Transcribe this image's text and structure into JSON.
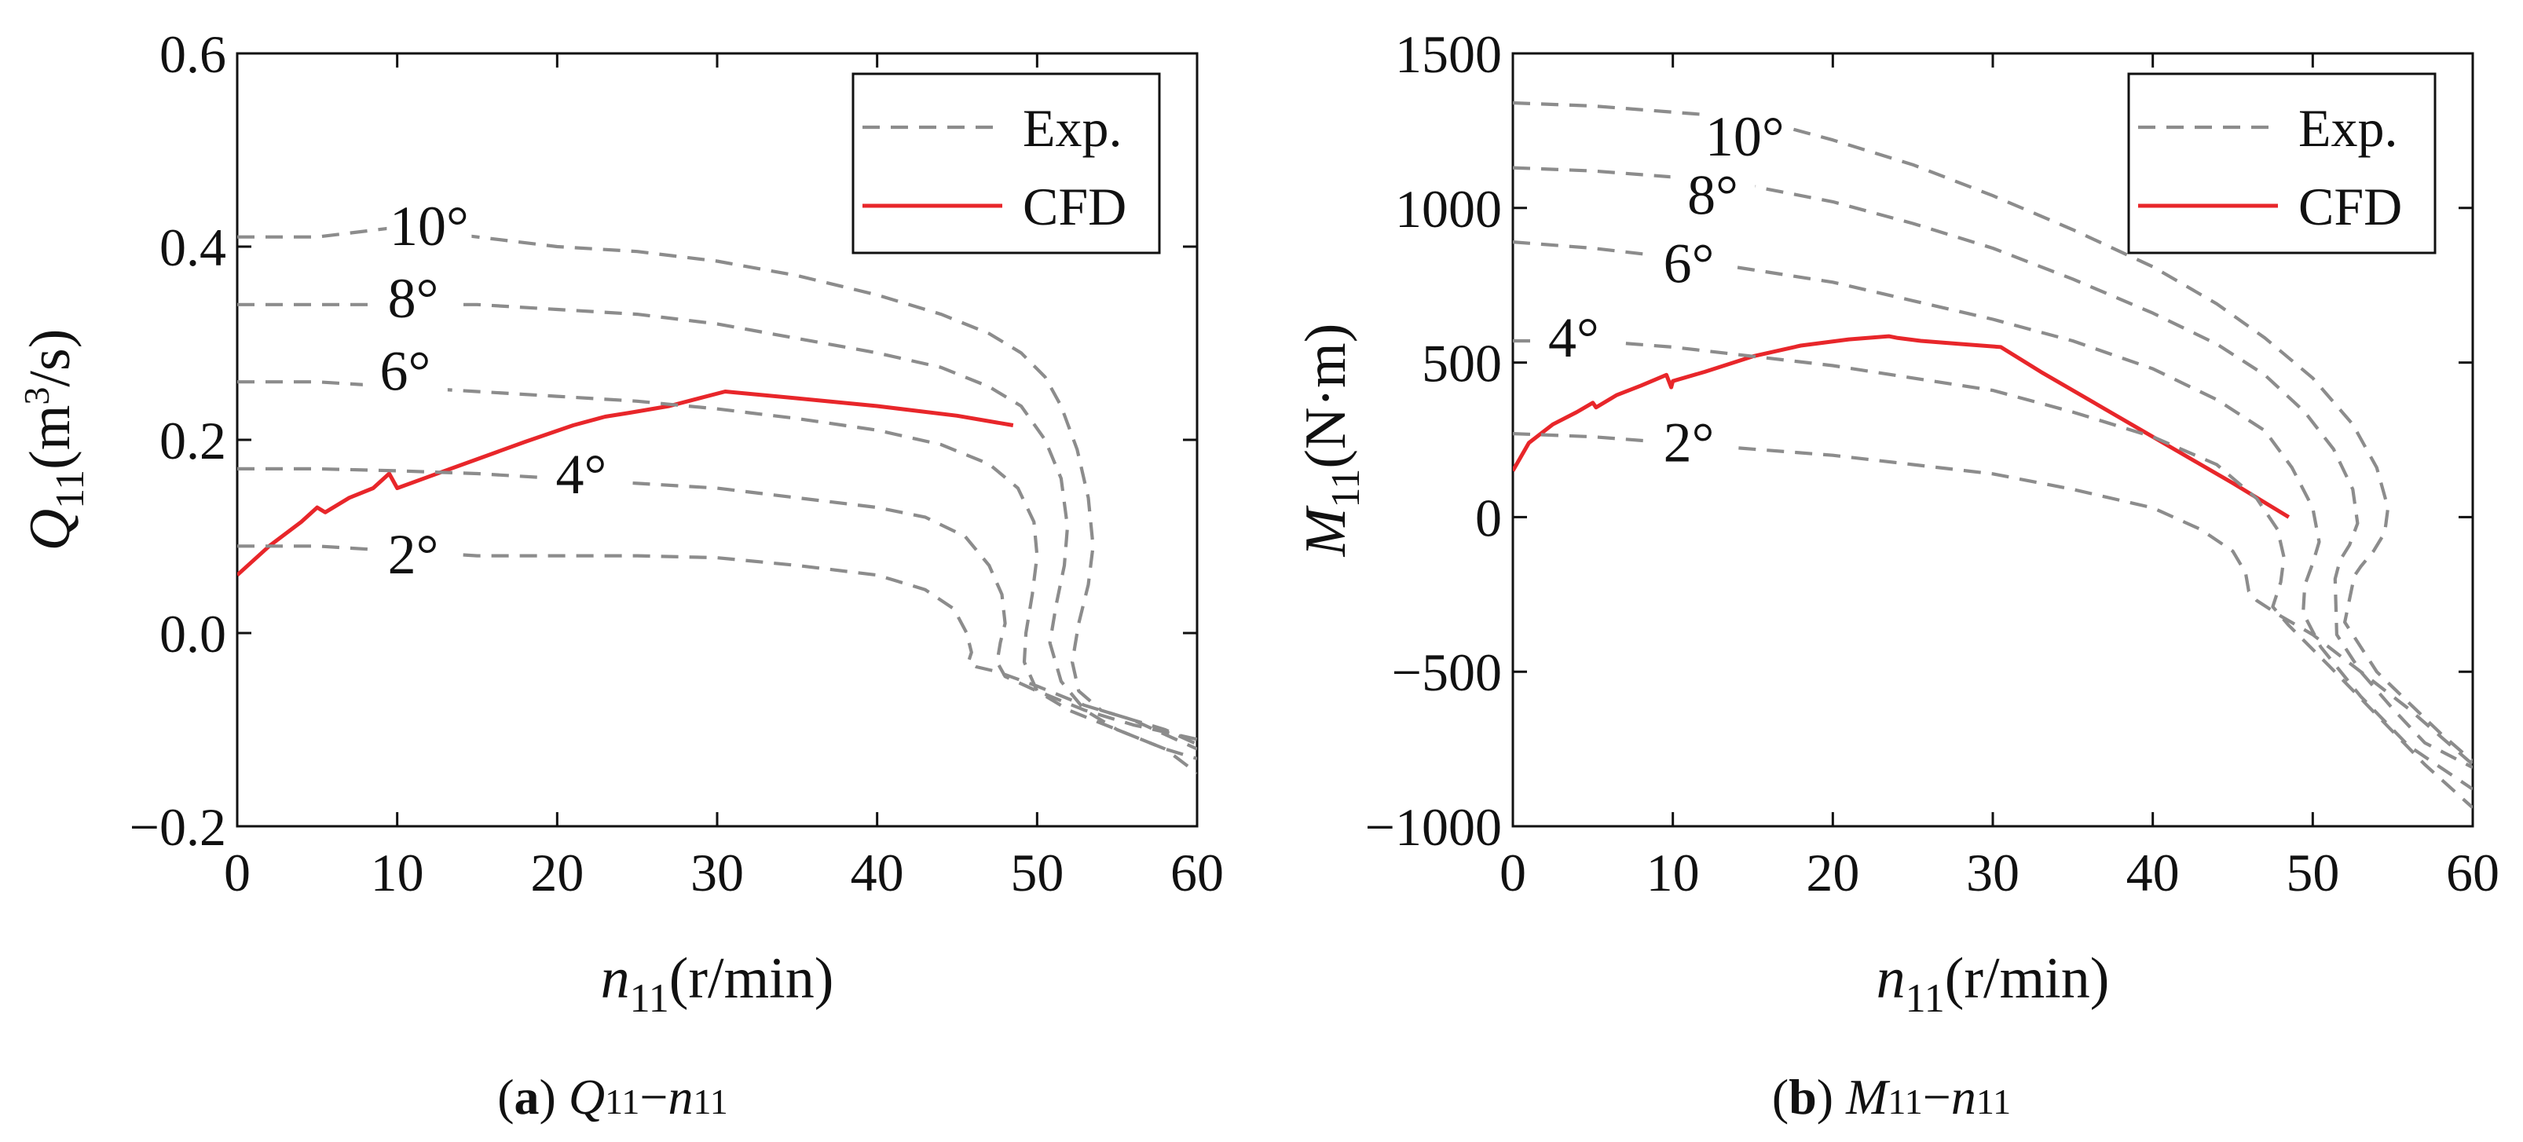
{
  "chart_data": [
    {
      "type": "line",
      "panel_label": "a",
      "caption": "Q11−n11",
      "xlabel": "n11(r/min)",
      "ylabel": "Q11(m3/s)",
      "xlim": [
        0,
        60
      ],
      "ylim": [
        -0.2,
        0.6
      ],
      "xticks": [
        0,
        10,
        20,
        30,
        40,
        50,
        60
      ],
      "yticks": [
        "−0.2",
        "0.0",
        "0.2",
        "0.4",
        "0.6"
      ],
      "ytick_values": [
        -0.2,
        0.0,
        0.2,
        0.4,
        0.6
      ],
      "legend": {
        "position": "top-right",
        "entries": [
          "Exp.",
          "CFD"
        ]
      },
      "colors": {
        "exp": "#8c8c8c",
        "cfd": "#e8262a"
      },
      "annotations": [
        {
          "text": "10°",
          "x": 12,
          "y": 0.405
        },
        {
          "text": "8°",
          "x": 11,
          "y": 0.33
        },
        {
          "text": "6°",
          "x": 10.5,
          "y": 0.255
        },
        {
          "text": "4°",
          "x": 21.5,
          "y": 0.148
        },
        {
          "text": "2°",
          "x": 11,
          "y": 0.065
        }
      ],
      "series": [
        {
          "name": "CFD",
          "style": "solid",
          "x": [
            0,
            2,
            4,
            5,
            5.5,
            7,
            8.5,
            9.5,
            10,
            12,
            15,
            18,
            21,
            23,
            24.5,
            27,
            30.5,
            35,
            40,
            45,
            48.5
          ],
          "y": [
            0.06,
            0.09,
            0.115,
            0.13,
            0.125,
            0.14,
            0.15,
            0.165,
            0.15,
            0.162,
            0.18,
            0.198,
            0.215,
            0.224,
            0.228,
            0.235,
            0.25,
            0.243,
            0.235,
            0.225,
            0.215
          ]
        },
        {
          "name": "Exp.",
          "style": "dashed",
          "label": "10°",
          "x": [
            0,
            5,
            10,
            15,
            20,
            25,
            30,
            35,
            40,
            44,
            47,
            49,
            50.5,
            51.5,
            52.5,
            53.2,
            53.5,
            53.2,
            52.6,
            52.2,
            52.6,
            54,
            56,
            58,
            60
          ],
          "y": [
            0.41,
            0.41,
            0.42,
            0.41,
            0.4,
            0.395,
            0.385,
            0.37,
            0.35,
            0.33,
            0.31,
            0.29,
            0.265,
            0.235,
            0.19,
            0.14,
            0.09,
            0.05,
            0.01,
            -0.03,
            -0.06,
            -0.08,
            -0.09,
            -0.1,
            -0.115
          ]
        },
        {
          "name": "Exp.",
          "style": "dashed",
          "label": "8°",
          "x": [
            0,
            5,
            10,
            15,
            20,
            25,
            30,
            35,
            40,
            44,
            47,
            49,
            50.5,
            51.5,
            51.9,
            51.7,
            51.2,
            50.8,
            51.5,
            53,
            55,
            58,
            60
          ],
          "y": [
            0.34,
            0.34,
            0.34,
            0.34,
            0.335,
            0.33,
            0.32,
            0.305,
            0.29,
            0.275,
            0.255,
            0.235,
            0.2,
            0.16,
            0.11,
            0.07,
            0.03,
            -0.01,
            -0.05,
            -0.08,
            -0.1,
            -0.12,
            -0.13
          ]
        },
        {
          "name": "Exp.",
          "style": "dashed",
          "label": "6°",
          "x": [
            0,
            5,
            10,
            15,
            20,
            25,
            30,
            35,
            40,
            44,
            47,
            48.8,
            49.8,
            50,
            49.7,
            49.3,
            49.2,
            50,
            52,
            55,
            58,
            60
          ],
          "y": [
            0.26,
            0.26,
            0.255,
            0.25,
            0.245,
            0.24,
            0.232,
            0.222,
            0.21,
            0.195,
            0.175,
            0.15,
            0.115,
            0.08,
            0.04,
            0.0,
            -0.03,
            -0.06,
            -0.08,
            -0.1,
            -0.12,
            -0.145
          ]
        },
        {
          "name": "Exp.",
          "style": "dashed",
          "label": "4°",
          "x": [
            0,
            5,
            10,
            15,
            20,
            25,
            30,
            35,
            40,
            43,
            45.5,
            47,
            47.8,
            48,
            47.7,
            47.5,
            48,
            50,
            53,
            56,
            60
          ],
          "y": [
            0.17,
            0.17,
            0.168,
            0.165,
            0.16,
            0.155,
            0.15,
            0.14,
            0.13,
            0.12,
            0.1,
            0.07,
            0.04,
            0.01,
            -0.01,
            -0.03,
            -0.045,
            -0.06,
            -0.08,
            -0.095,
            -0.11
          ]
        },
        {
          "name": "Exp.",
          "style": "dashed",
          "label": "2°",
          "x": [
            0,
            5,
            10,
            15,
            20,
            25,
            30,
            35,
            40,
            43,
            44.8,
            45.6,
            45.9,
            45.7,
            46.2,
            47.5,
            50,
            53,
            56,
            60
          ],
          "y": [
            0.09,
            0.09,
            0.085,
            0.08,
            0.08,
            0.08,
            0.078,
            0.07,
            0.06,
            0.045,
            0.025,
            0.0,
            -0.02,
            -0.03,
            -0.035,
            -0.04,
            -0.055,
            -0.075,
            -0.09,
            -0.12
          ]
        }
      ]
    },
    {
      "type": "line",
      "panel_label": "b",
      "caption": "M11−n11",
      "xlabel": "n11(r/min)",
      "ylabel": "M11(N·m)",
      "xlim": [
        0,
        60
      ],
      "ylim": [
        -1000,
        1500
      ],
      "xticks": [
        0,
        10,
        20,
        30,
        40,
        50,
        60
      ],
      "yticks": [
        "−1000",
        "−500",
        "0",
        "500",
        "1000",
        "1500"
      ],
      "ytick_values": [
        -1000,
        -500,
        0,
        500,
        1000,
        1500
      ],
      "legend": {
        "position": "top-right",
        "entries": [
          "Exp.",
          "CFD"
        ]
      },
      "colors": {
        "exp": "#8c8c8c",
        "cfd": "#e8262a"
      },
      "annotations": [
        {
          "text": "10°",
          "x": 14.5,
          "y": 1180
        },
        {
          "text": "8°",
          "x": 12.5,
          "y": 990
        },
        {
          "text": "6°",
          "x": 11,
          "y": 770
        },
        {
          "text": "4°",
          "x": 3.8,
          "y": 530
        },
        {
          "text": "2°",
          "x": 11,
          "y": 190
        }
      ],
      "series": [
        {
          "name": "CFD",
          "style": "solid",
          "x": [
            0,
            1,
            2.5,
            4,
            5,
            5.2,
            6.5,
            8,
            9.6,
            9.9,
            10,
            12,
            15,
            18,
            21,
            23.5,
            24,
            25.5,
            28,
            30.5,
            33,
            36,
            39,
            42,
            45,
            48.5
          ],
          "y": [
            150,
            240,
            300,
            340,
            370,
            355,
            395,
            425,
            460,
            420,
            440,
            470,
            520,
            555,
            575,
            585,
            580,
            570,
            560,
            550,
            470,
            380,
            290,
            200,
            110,
            0
          ]
        },
        {
          "name": "Exp.",
          "style": "dashed",
          "label": "10°",
          "x": [
            0,
            5,
            10,
            15,
            20,
            25,
            30,
            35,
            40,
            44,
            47,
            50,
            52.5,
            54,
            54.7,
            54.5,
            53.8,
            53,
            52.6,
            52,
            54,
            56,
            58,
            60
          ],
          "y": [
            1340,
            1330,
            1310,
            1290,
            1220,
            1140,
            1040,
            930,
            810,
            690,
            580,
            450,
            300,
            160,
            30,
            -50,
            -110,
            -160,
            -190,
            -340,
            -500,
            -600,
            -700,
            -790
          ]
        },
        {
          "name": "Exp.",
          "style": "dashed",
          "label": "8°",
          "x": [
            0,
            5,
            10,
            15,
            20,
            25,
            30,
            35,
            40,
            44,
            47,
            49.5,
            51.3,
            52.5,
            52.8,
            52.3,
            51.7,
            51.4,
            51.5,
            53,
            55,
            57,
            60
          ],
          "y": [
            1130,
            1120,
            1100,
            1070,
            1020,
            950,
            870,
            770,
            660,
            560,
            460,
            340,
            220,
            90,
            -20,
            -90,
            -140,
            -200,
            -380,
            -500,
            -620,
            -730,
            -810
          ]
        },
        {
          "name": "Exp.",
          "style": "dashed",
          "label": "6°",
          "x": [
            0,
            5,
            10,
            15,
            20,
            25,
            30,
            35,
            40,
            44,
            47,
            48.7,
            50,
            50.4,
            50,
            49.5,
            49.4,
            50.5,
            53,
            56,
            60
          ],
          "y": [
            890,
            870,
            840,
            800,
            760,
            700,
            640,
            570,
            480,
            380,
            280,
            160,
            30,
            -80,
            -150,
            -220,
            -310,
            -420,
            -580,
            -740,
            -880
          ]
        },
        {
          "name": "Exp.",
          "style": "dashed",
          "label": "4°",
          "x": [
            0,
            5,
            10,
            15,
            20,
            25,
            30,
            35,
            40,
            44,
            46.5,
            47.8,
            48.2,
            48,
            47.5,
            48.5,
            51,
            54,
            57,
            60
          ],
          "y": [
            570,
            570,
            550,
            520,
            490,
            450,
            410,
            340,
            260,
            170,
            60,
            -40,
            -130,
            -210,
            -290,
            -350,
            -480,
            -640,
            -800,
            -940
          ]
        },
        {
          "name": "Exp.",
          "style": "dashed",
          "label": "2°",
          "x": [
            0,
            5,
            10,
            15,
            20,
            25,
            30,
            35,
            40,
            43,
            45,
            45.8,
            46,
            46.5,
            48,
            50,
            53,
            56,
            60
          ],
          "y": [
            270,
            260,
            240,
            220,
            200,
            170,
            140,
            90,
            30,
            -40,
            -110,
            -180,
            -240,
            -270,
            -320,
            -380,
            -500,
            -620,
            -800
          ]
        }
      ]
    }
  ]
}
